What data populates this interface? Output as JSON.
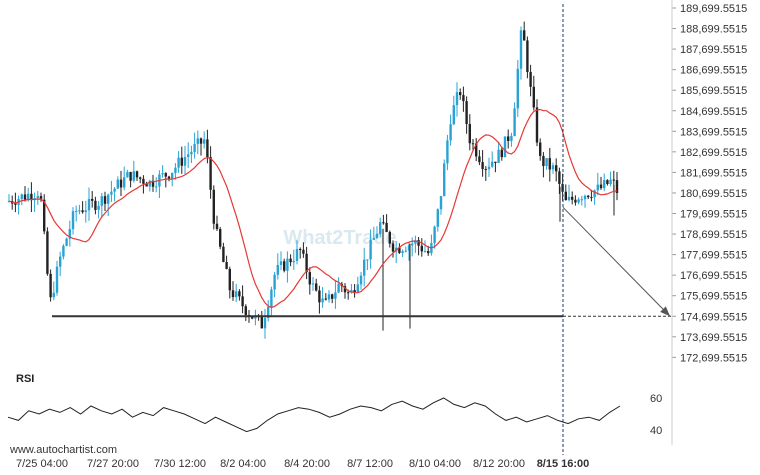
{
  "chart_data": {
    "type": "candlestick",
    "y_ticks": [
      "189,699.5515",
      "188,699.5515",
      "187,699.5515",
      "186,699.5515",
      "185,699.5515",
      "184,699.5515",
      "183,699.5515",
      "182,699.5515",
      "181,699.5515",
      "180,699.5515",
      "179,699.5515",
      "178,699.5515",
      "177,699.5515",
      "176,699.5515",
      "175,699.5515",
      "174,699.5515",
      "173,699.5515",
      "172,699.5515"
    ],
    "x_ticks": [
      "7/25 04:00",
      "7/27 20:00",
      "7/30 12:00",
      "8/2 04:00",
      "8/4 20:00",
      "8/7 12:00",
      "8/10 04:00",
      "8/12 20:00",
      "8/15 16:00"
    ],
    "current_time_label": "8/15 16:00",
    "support_level": 174699.5515,
    "projection": {
      "from": 180000,
      "to": 174699.5515
    },
    "moving_average_color": "#e53935",
    "candle_up_color": "#29a3d6",
    "candle_down_color": "#222222",
    "rsi": {
      "title": "RSI",
      "y_ticks": [
        "60",
        "40"
      ],
      "values": [
        48,
        46,
        52,
        50,
        53,
        51,
        54,
        50,
        55,
        52,
        50,
        53,
        48,
        51,
        49,
        54,
        52,
        50,
        47,
        44,
        48,
        45,
        42,
        39,
        41,
        46,
        50,
        52,
        54,
        53,
        51,
        48,
        50,
        53,
        55,
        54,
        52,
        56,
        58,
        55,
        53,
        57,
        60,
        56,
        54,
        57,
        55,
        50,
        46,
        48,
        45,
        47,
        49,
        46,
        44,
        47,
        48,
        46,
        51,
        55
      ]
    },
    "source": "www.autochartist.com",
    "watermark": "What2Trade"
  }
}
